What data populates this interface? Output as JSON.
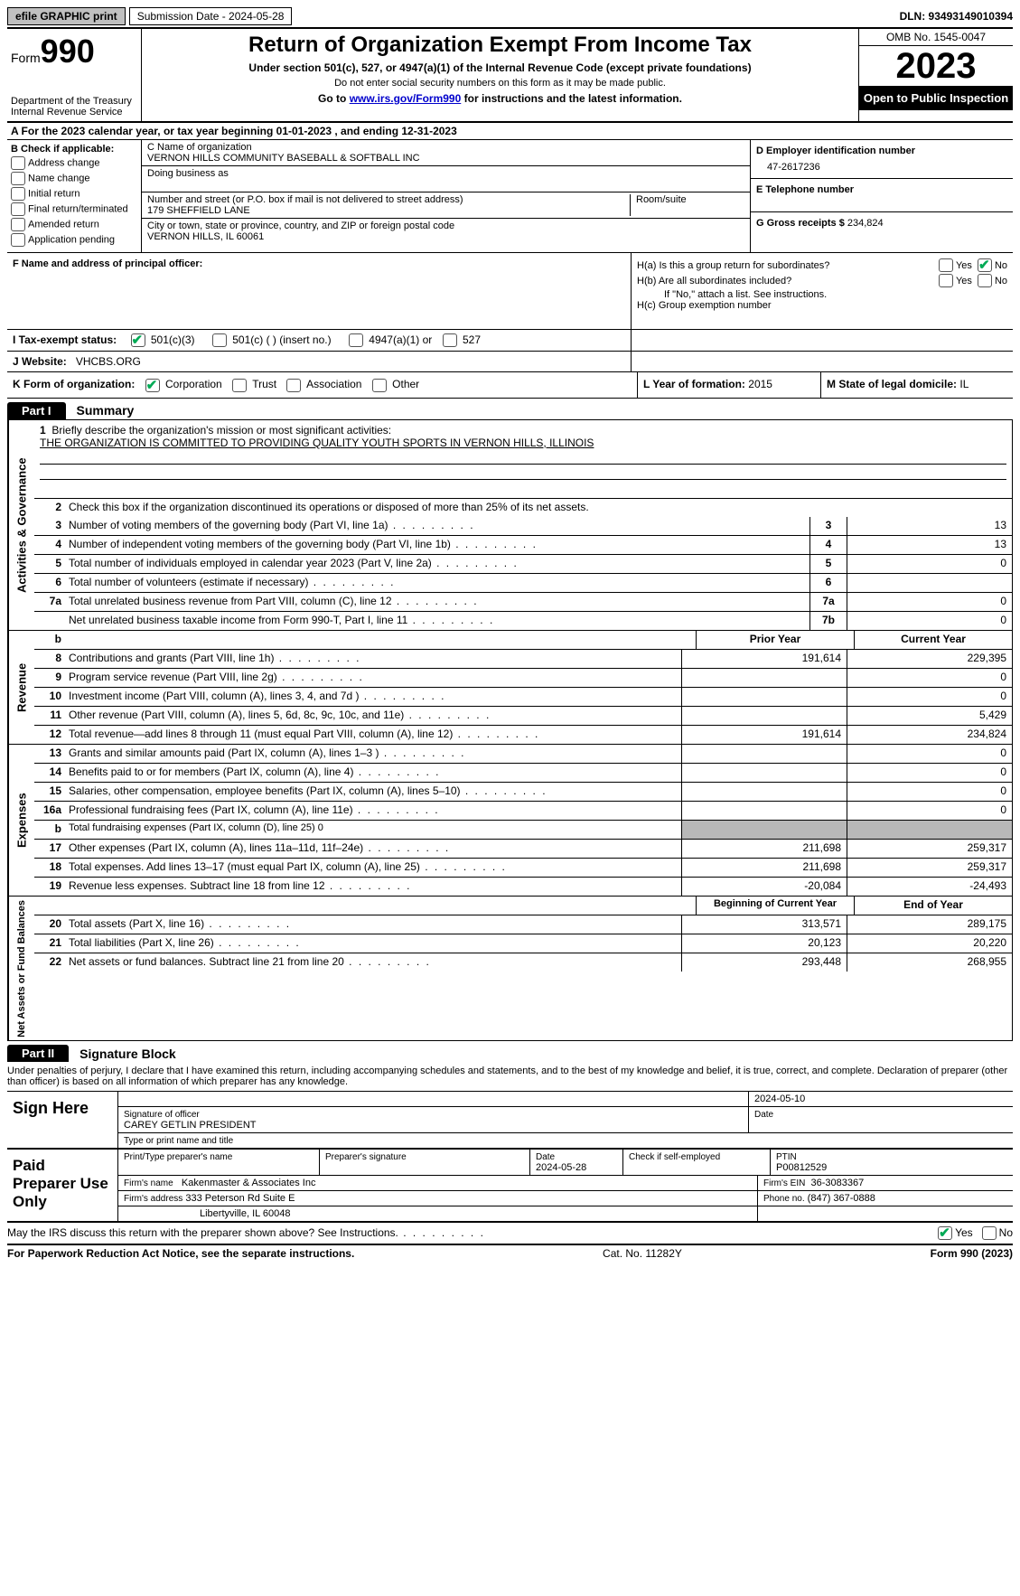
{
  "topbar": {
    "efile": "efile GRAPHIC print",
    "submission": "Submission Date - 2024-05-28",
    "dln": "DLN: 93493149010394"
  },
  "header": {
    "form_label": "Form",
    "form_num": "990",
    "dept": "Department of the Treasury\nInternal Revenue Service",
    "title": "Return of Organization Exempt From Income Tax",
    "sub1": "Under section 501(c), 527, or 4947(a)(1) of the Internal Revenue Code (except private foundations)",
    "sub2": "Do not enter social security numbers on this form as it may be made public.",
    "sub3_pre": "Go to ",
    "sub3_link": "www.irs.gov/Form990",
    "sub3_post": " for instructions and the latest information.",
    "omb": "OMB No. 1545-0047",
    "year": "2023",
    "inspection": "Open to Public Inspection"
  },
  "section_a": "A  For the 2023 calendar year, or tax year beginning 01-01-2023    , and ending 12-31-2023",
  "box_b": {
    "title": "B Check if applicable:",
    "items": [
      "Address change",
      "Name change",
      "Initial return",
      "Final return/terminated",
      "Amended return",
      "Application pending"
    ]
  },
  "box_c": {
    "label_name": "C Name of organization",
    "name": "VERNON HILLS COMMUNITY BASEBALL & SOFTBALL INC",
    "dba_label": "Doing business as",
    "addr_label": "Number and street (or P.O. box if mail is not delivered to street address)",
    "room_label": "Room/suite",
    "addr": "179 SHEFFIELD LANE",
    "city_label": "City or town, state or province, country, and ZIP or foreign postal code",
    "city": "VERNON HILLS, IL  60061"
  },
  "box_d": {
    "label": "D Employer identification number",
    "ein": "47-2617236"
  },
  "box_e": {
    "label": "E Telephone number"
  },
  "box_g": {
    "label": "G Gross receipts $",
    "val": "234,824"
  },
  "box_f": {
    "label": "F  Name and address of principal officer:"
  },
  "box_h": {
    "a": "H(a)  Is this a group return for subordinates?",
    "b": "H(b)  Are all subordinates included?",
    "note": "If \"No,\" attach a list. See instructions.",
    "c": "H(c)  Group exemption number",
    "yes": "Yes",
    "no": "No"
  },
  "row_i": {
    "label": "I   Tax-exempt status:",
    "o1": "501(c)(3)",
    "o2": "501(c) (  ) (insert no.)",
    "o3": "4947(a)(1) or",
    "o4": "527"
  },
  "row_j": {
    "label": "J   Website:",
    "val": "VHCBS.ORG"
  },
  "row_k": {
    "label": "K Form of organization:",
    "o1": "Corporation",
    "o2": "Trust",
    "o3": "Association",
    "o4": "Other"
  },
  "row_l": {
    "label": "L Year of formation:",
    "val": "2015"
  },
  "row_m": {
    "label": "M State of legal domicile:",
    "val": "IL"
  },
  "part1": {
    "tab": "Part I",
    "title": "Summary"
  },
  "p1": {
    "l1_label": "Briefly describe the organization's mission or most significant activities:",
    "l1_text": "THE ORGANIZATION IS COMMITTED TO PROVIDING QUALITY YOUTH SPORTS IN VERNON HILLS, ILLINOIS",
    "l2": "Check this box      if the organization discontinued its operations or disposed of more than 25% of its net assets.",
    "rows_gov": [
      {
        "n": "3",
        "d": "Number of voting members of the governing body (Part VI, line 1a)",
        "b": "3",
        "v": "13"
      },
      {
        "n": "4",
        "d": "Number of independent voting members of the governing body (Part VI, line 1b)",
        "b": "4",
        "v": "13"
      },
      {
        "n": "5",
        "d": "Total number of individuals employed in calendar year 2023 (Part V, line 2a)",
        "b": "5",
        "v": "0"
      },
      {
        "n": "6",
        "d": "Total number of volunteers (estimate if necessary)",
        "b": "6",
        "v": ""
      },
      {
        "n": "7a",
        "d": "Total unrelated business revenue from Part VIII, column (C), line 12",
        "b": "7a",
        "v": "0"
      },
      {
        "n": "",
        "d": "Net unrelated business taxable income from Form 990-T, Part I, line 11",
        "b": "7b",
        "v": "0"
      }
    ],
    "hdr_prior": "Prior Year",
    "hdr_current": "Current Year",
    "rows_rev": [
      {
        "n": "8",
        "d": "Contributions and grants (Part VIII, line 1h)",
        "p": "191,614",
        "c": "229,395"
      },
      {
        "n": "9",
        "d": "Program service revenue (Part VIII, line 2g)",
        "p": "",
        "c": "0"
      },
      {
        "n": "10",
        "d": "Investment income (Part VIII, column (A), lines 3, 4, and 7d )",
        "p": "",
        "c": "0"
      },
      {
        "n": "11",
        "d": "Other revenue (Part VIII, column (A), lines 5, 6d, 8c, 9c, 10c, and 11e)",
        "p": "",
        "c": "5,429"
      },
      {
        "n": "12",
        "d": "Total revenue—add lines 8 through 11 (must equal Part VIII, column (A), line 12)",
        "p": "191,614",
        "c": "234,824"
      }
    ],
    "rows_exp": [
      {
        "n": "13",
        "d": "Grants and similar amounts paid (Part IX, column (A), lines 1–3 )",
        "p": "",
        "c": "0"
      },
      {
        "n": "14",
        "d": "Benefits paid to or for members (Part IX, column (A), line 4)",
        "p": "",
        "c": "0"
      },
      {
        "n": "15",
        "d": "Salaries, other compensation, employee benefits (Part IX, column (A), lines 5–10)",
        "p": "",
        "c": "0"
      },
      {
        "n": "16a",
        "d": "Professional fundraising fees (Part IX, column (A), line 11e)",
        "p": "",
        "c": "0"
      },
      {
        "n": "b",
        "d": "Total fundraising expenses (Part IX, column (D), line 25) 0",
        "p": "SHADE",
        "c": "SHADE"
      },
      {
        "n": "17",
        "d": "Other expenses (Part IX, column (A), lines 11a–11d, 11f–24e)",
        "p": "211,698",
        "c": "259,317"
      },
      {
        "n": "18",
        "d": "Total expenses. Add lines 13–17 (must equal Part IX, column (A), line 25)",
        "p": "211,698",
        "c": "259,317"
      },
      {
        "n": "19",
        "d": "Revenue less expenses. Subtract line 18 from line 12",
        "p": "-20,084",
        "c": "-24,493"
      }
    ],
    "hdr_begin": "Beginning of Current Year",
    "hdr_end": "End of Year",
    "rows_net": [
      {
        "n": "20",
        "d": "Total assets (Part X, line 16)",
        "p": "313,571",
        "c": "289,175"
      },
      {
        "n": "21",
        "d": "Total liabilities (Part X, line 26)",
        "p": "20,123",
        "c": "20,220"
      },
      {
        "n": "22",
        "d": "Net assets or fund balances. Subtract line 21 from line 20",
        "p": "293,448",
        "c": "268,955"
      }
    ],
    "side_gov": "Activities & Governance",
    "side_rev": "Revenue",
    "side_exp": "Expenses",
    "side_net": "Net Assets or Fund Balances"
  },
  "part2": {
    "tab": "Part II",
    "title": "Signature Block"
  },
  "sig": {
    "decl": "Under penalties of perjury, I declare that I have examined this return, including accompanying schedules and statements, and to the best of my knowledge and belief, it is true, correct, and complete. Declaration of preparer (other than officer) is based on all information of which preparer has any knowledge.",
    "sign_here": "Sign Here",
    "date1": "2024-05-10",
    "sig_label": "Signature of officer",
    "officer": "CAREY GETLIN  PRESIDENT",
    "type_label": "Type or print name and title",
    "date_label": "Date",
    "paid": "Paid Preparer Use Only",
    "h_print": "Print/Type preparer's name",
    "h_sig": "Preparer's signature",
    "h_date": "Date",
    "date2": "2024-05-28",
    "h_check": "Check       if self-employed",
    "h_ptin": "PTIN",
    "ptin": "P00812529",
    "firm_label": "Firm's name",
    "firm": "Kakenmaster & Associates Inc",
    "ein_label": "Firm's EIN",
    "ein": "36-3083367",
    "addr_label": "Firm's address",
    "addr1": "333 Peterson Rd Suite E",
    "addr2": "Libertyville, IL  60048",
    "phone_label": "Phone no.",
    "phone": "(847) 367-0888",
    "discuss": "May the IRS discuss this return with the preparer shown above? See Instructions.",
    "yes": "Yes",
    "no": "No"
  },
  "footer": {
    "left": "For Paperwork Reduction Act Notice, see the separate instructions.",
    "mid": "Cat. No. 11282Y",
    "right": "Form 990 (2023)"
  }
}
